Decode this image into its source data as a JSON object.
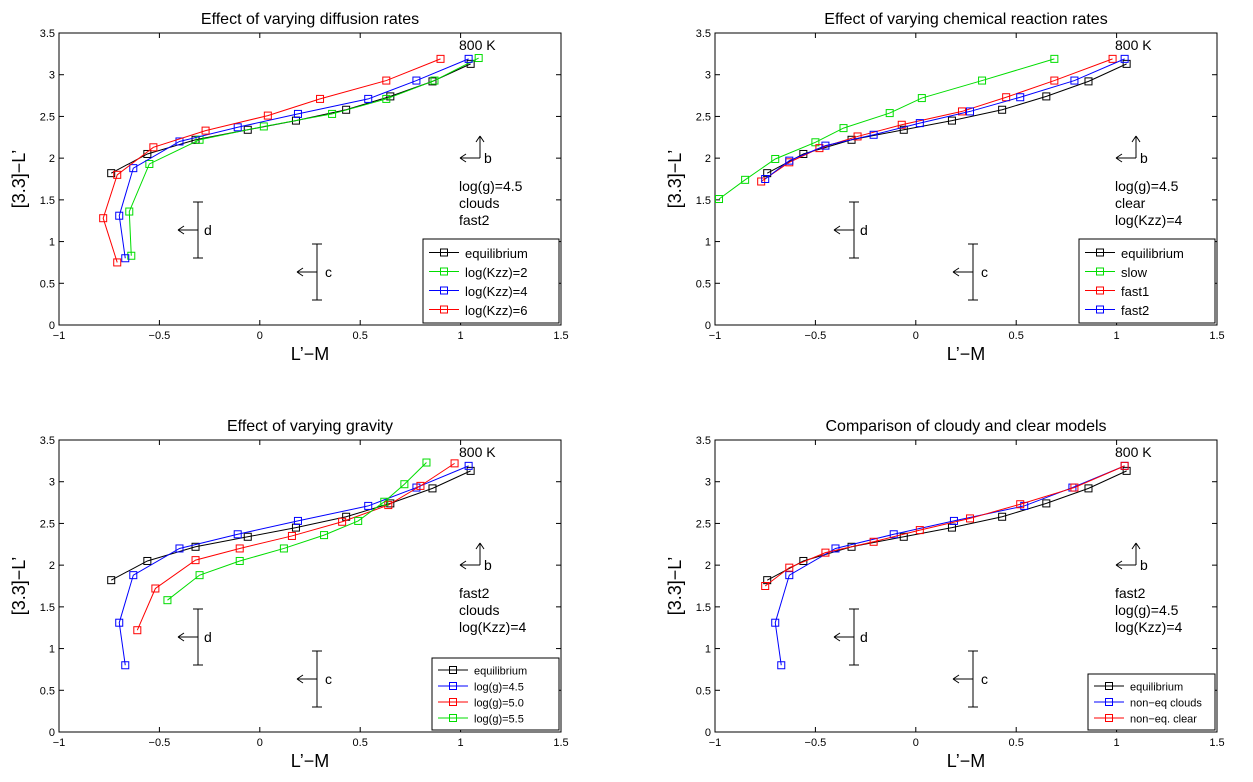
{
  "chart_data": [
    {
      "type": "line",
      "title": "Effect of varying diffusion rates",
      "xlabel": "L’−M",
      "ylabel": "[3.3]−L’",
      "xlim": [
        -1,
        1.5
      ],
      "ylim": [
        0,
        3.5
      ],
      "xticks": [
        "−1",
        "−0.5",
        "0",
        "0.5",
        "1",
        "1.5"
      ],
      "yticks": [
        "0",
        "0.5",
        "1",
        "1.5",
        "2",
        "2.5",
        "3",
        "3.5"
      ],
      "temp_label": "800 K",
      "info": [
        "log(g)=4.5",
        "clouds",
        "fast2"
      ],
      "arrows": {
        "b": "b",
        "c": "c",
        "d": "d"
      },
      "legend_size": "large",
      "series": [
        {
          "name": "equilibrium",
          "color": "#000000",
          "points": [
            [
              1.05,
              3.13
            ],
            [
              0.86,
              2.92
            ],
            [
              0.65,
              2.74
            ],
            [
              0.43,
              2.58
            ],
            [
              0.18,
              2.45
            ],
            [
              -0.06,
              2.34
            ],
            [
              -0.32,
              2.22
            ],
            [
              -0.56,
              2.05
            ],
            [
              -0.74,
              1.82
            ]
          ]
        },
        {
          "name": "log(Kzz)=2",
          "color": "#00dd00",
          "points": [
            [
              1.09,
              3.2
            ],
            [
              0.87,
              2.93
            ],
            [
              0.63,
              2.71
            ],
            [
              0.36,
              2.53
            ],
            [
              0.02,
              2.38
            ],
            [
              -0.3,
              2.22
            ],
            [
              -0.55,
              1.93
            ],
            [
              -0.65,
              1.36
            ],
            [
              -0.64,
              0.83
            ]
          ]
        },
        {
          "name": "log(Kzz)=4",
          "color": "#0000ff",
          "points": [
            [
              1.04,
              3.19
            ],
            [
              0.78,
              2.93
            ],
            [
              0.54,
              2.71
            ],
            [
              0.19,
              2.53
            ],
            [
              -0.11,
              2.37
            ],
            [
              -0.4,
              2.2
            ],
            [
              -0.63,
              1.88
            ],
            [
              -0.7,
              1.31
            ],
            [
              -0.67,
              0.8
            ]
          ]
        },
        {
          "name": "log(Kzz)=6",
          "color": "#ff0000",
          "points": [
            [
              0.9,
              3.19
            ],
            [
              0.63,
              2.93
            ],
            [
              0.3,
              2.71
            ],
            [
              0.04,
              2.51
            ],
            [
              -0.27,
              2.33
            ],
            [
              -0.53,
              2.13
            ],
            [
              -0.71,
              1.8
            ],
            [
              -0.78,
              1.28
            ],
            [
              -0.71,
              0.75
            ]
          ]
        }
      ]
    },
    {
      "type": "line",
      "title": "Effect of varying chemical reaction rates",
      "xlabel": "L’−M",
      "ylabel": "[3.3]−L’",
      "xlim": [
        -1,
        1.5
      ],
      "ylim": [
        0,
        3.5
      ],
      "xticks": [
        "−1",
        "−0.5",
        "0",
        "0.5",
        "1",
        "1.5"
      ],
      "yticks": [
        "0",
        "0.5",
        "1",
        "1.5",
        "2",
        "2.5",
        "3",
        "3.5"
      ],
      "temp_label": "800 K",
      "info": [
        "log(g)=4.5",
        "clear",
        "log(Kzz)=4"
      ],
      "arrows": {
        "b": "b",
        "c": "c",
        "d": "d"
      },
      "legend_size": "large",
      "series": [
        {
          "name": "equilibrium",
          "color": "#000000",
          "points": [
            [
              1.05,
              3.13
            ],
            [
              0.86,
              2.92
            ],
            [
              0.65,
              2.74
            ],
            [
              0.43,
              2.58
            ],
            [
              0.18,
              2.45
            ],
            [
              -0.06,
              2.34
            ],
            [
              -0.32,
              2.22
            ],
            [
              -0.56,
              2.05
            ],
            [
              -0.74,
              1.82
            ]
          ]
        },
        {
          "name": "slow",
          "color": "#00dd00",
          "points": [
            [
              0.69,
              3.19
            ],
            [
              0.33,
              2.93
            ],
            [
              0.03,
              2.72
            ],
            [
              -0.13,
              2.54
            ],
            [
              -0.36,
              2.36
            ],
            [
              -0.5,
              2.19
            ],
            [
              -0.7,
              1.99
            ],
            [
              -0.85,
              1.74
            ],
            [
              -0.98,
              1.51
            ]
          ]
        },
        {
          "name": "fast1",
          "color": "#ff0000",
          "points": [
            [
              0.98,
              3.19
            ],
            [
              0.69,
              2.93
            ],
            [
              0.45,
              2.73
            ],
            [
              0.23,
              2.56
            ],
            [
              -0.07,
              2.4
            ],
            [
              -0.29,
              2.26
            ],
            [
              -0.48,
              2.12
            ],
            [
              -0.63,
              1.95
            ],
            [
              -0.77,
              1.72
            ]
          ]
        },
        {
          "name": "fast2",
          "color": "#0000ff",
          "points": [
            [
              1.04,
              3.19
            ],
            [
              0.79,
              2.93
            ],
            [
              0.52,
              2.73
            ],
            [
              0.27,
              2.56
            ],
            [
              0.02,
              2.42
            ],
            [
              -0.21,
              2.28
            ],
            [
              -0.45,
              2.15
            ],
            [
              -0.63,
              1.97
            ],
            [
              -0.75,
              1.75
            ]
          ]
        }
      ]
    },
    {
      "type": "line",
      "title": "Effect of varying gravity",
      "xlabel": "L’−M",
      "ylabel": "[3.3]−L’",
      "xlim": [
        -1,
        1.5
      ],
      "ylim": [
        0,
        3.5
      ],
      "xticks": [
        "−1",
        "−0.5",
        "0",
        "0.5",
        "1",
        "1.5"
      ],
      "yticks": [
        "0",
        "0.5",
        "1",
        "1.5",
        "2",
        "2.5",
        "3",
        "3.5"
      ],
      "temp_label": "800 K",
      "info": [
        "fast2",
        "clouds",
        "log(Kzz)=4"
      ],
      "arrows": {
        "b": "b",
        "c": "c",
        "d": "d"
      },
      "legend_size": "small",
      "series": [
        {
          "name": "equilibrium",
          "color": "#000000",
          "points": [
            [
              1.05,
              3.13
            ],
            [
              0.86,
              2.92
            ],
            [
              0.65,
              2.74
            ],
            [
              0.43,
              2.58
            ],
            [
              0.18,
              2.45
            ],
            [
              -0.06,
              2.34
            ],
            [
              -0.32,
              2.22
            ],
            [
              -0.56,
              2.05
            ],
            [
              -0.74,
              1.82
            ]
          ]
        },
        {
          "name": "log(g)=4.5",
          "color": "#0000ff",
          "points": [
            [
              1.04,
              3.19
            ],
            [
              0.78,
              2.93
            ],
            [
              0.54,
              2.71
            ],
            [
              0.19,
              2.53
            ],
            [
              -0.11,
              2.37
            ],
            [
              -0.4,
              2.2
            ],
            [
              -0.63,
              1.88
            ],
            [
              -0.7,
              1.31
            ],
            [
              -0.67,
              0.8
            ]
          ]
        },
        {
          "name": "log(g)=5.0",
          "color": "#ff0000",
          "points": [
            [
              0.97,
              3.22
            ],
            [
              0.8,
              2.95
            ],
            [
              0.64,
              2.72
            ],
            [
              0.41,
              2.52
            ],
            [
              0.16,
              2.35
            ],
            [
              -0.1,
              2.2
            ],
            [
              -0.32,
              2.06
            ],
            [
              -0.52,
              1.72
            ],
            [
              -0.61,
              1.22
            ]
          ]
        },
        {
          "name": "log(g)=5.5",
          "color": "#00dd00",
          "points": [
            [
              0.83,
              3.23
            ],
            [
              0.72,
              2.97
            ],
            [
              0.62,
              2.76
            ],
            [
              0.49,
              2.53
            ],
            [
              0.32,
              2.36
            ],
            [
              0.12,
              2.2
            ],
            [
              -0.1,
              2.05
            ],
            [
              -0.3,
              1.88
            ],
            [
              -0.46,
              1.58
            ]
          ]
        }
      ]
    },
    {
      "type": "line",
      "title": "Comparison of cloudy and clear models",
      "xlabel": "L’−M",
      "ylabel": "[3.3]−L’",
      "xlim": [
        -1,
        1.5
      ],
      "ylim": [
        0,
        3.5
      ],
      "xticks": [
        "−1",
        "−0.5",
        "0",
        "0.5",
        "1",
        "1.5"
      ],
      "yticks": [
        "0",
        "0.5",
        "1",
        "1.5",
        "2",
        "2.5",
        "3",
        "3.5"
      ],
      "temp_label": "800 K",
      "info": [
        "fast2",
        "log(g)=4.5",
        "log(Kzz)=4"
      ],
      "arrows": {
        "b": "b",
        "c": "c",
        "d": "d"
      },
      "legend_size": "small",
      "series": [
        {
          "name": "equilibrium",
          "color": "#000000",
          "points": [
            [
              1.05,
              3.13
            ],
            [
              0.86,
              2.92
            ],
            [
              0.65,
              2.74
            ],
            [
              0.43,
              2.58
            ],
            [
              0.18,
              2.45
            ],
            [
              -0.06,
              2.34
            ],
            [
              -0.32,
              2.22
            ],
            [
              -0.56,
              2.05
            ],
            [
              -0.74,
              1.82
            ]
          ]
        },
        {
          "name": "non−eq clouds",
          "color": "#0000ff",
          "points": [
            [
              1.04,
              3.19
            ],
            [
              0.78,
              2.93
            ],
            [
              0.54,
              2.71
            ],
            [
              0.19,
              2.53
            ],
            [
              -0.11,
              2.37
            ],
            [
              -0.4,
              2.2
            ],
            [
              -0.63,
              1.88
            ],
            [
              -0.7,
              1.31
            ],
            [
              -0.67,
              0.8
            ]
          ]
        },
        {
          "name": "non−eq. clear",
          "color": "#ff0000",
          "points": [
            [
              1.04,
              3.19
            ],
            [
              0.79,
              2.93
            ],
            [
              0.52,
              2.73
            ],
            [
              0.27,
              2.56
            ],
            [
              0.02,
              2.42
            ],
            [
              -0.21,
              2.28
            ],
            [
              -0.45,
              2.15
            ],
            [
              -0.63,
              1.97
            ],
            [
              -0.75,
              1.75
            ]
          ]
        }
      ]
    }
  ]
}
